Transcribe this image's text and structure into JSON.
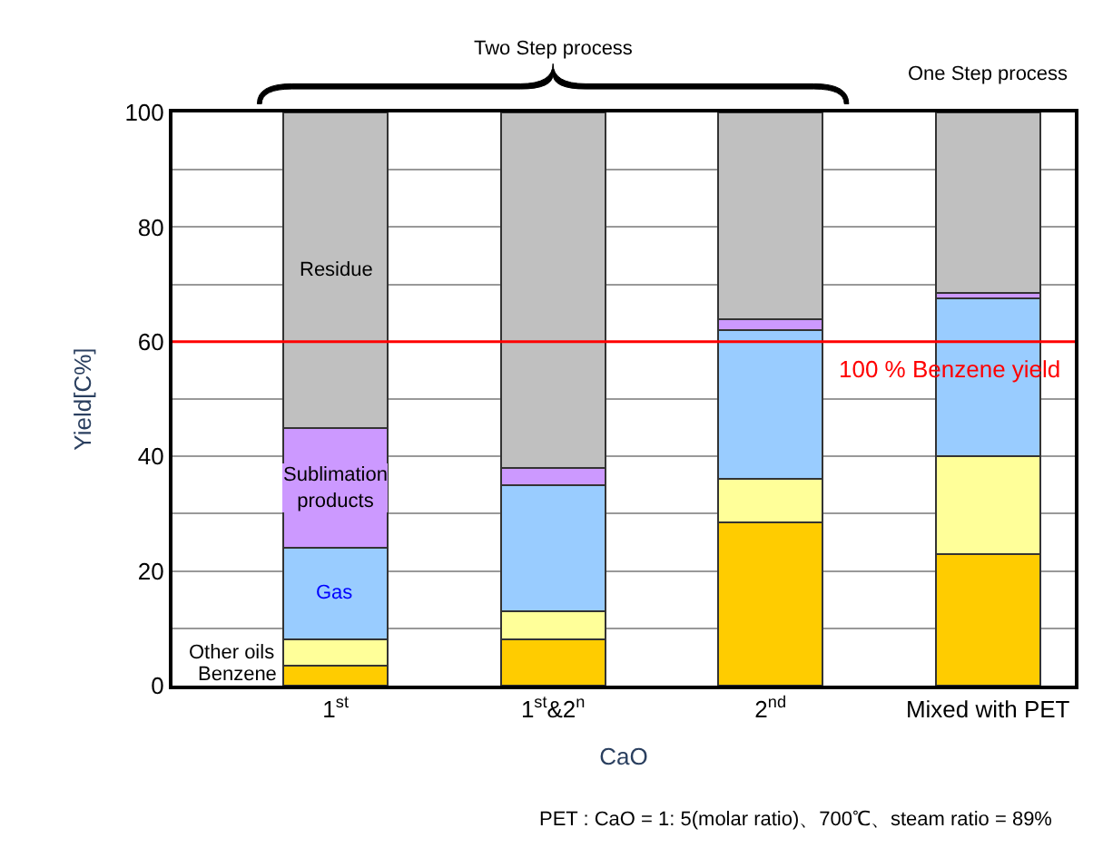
{
  "chart_data": {
    "type": "bar",
    "stacked": true,
    "categories": [
      "1$^{st}$",
      "1$^{st}$&2$^{n}$",
      "2$^{nd}$",
      "Mixed with PET"
    ],
    "series": [
      {
        "name": "Benzene",
        "color": "#ffcc00",
        "values": [
          3.5,
          8,
          28.5,
          23
        ]
      },
      {
        "name": "Other oils",
        "color": "#ffff99",
        "values": [
          4.5,
          5,
          7.5,
          17
        ]
      },
      {
        "name": "Gas",
        "color": "#99ccff",
        "values": [
          16,
          22,
          26,
          27.5
        ]
      },
      {
        "name": "Sublimation products",
        "color": "#cc99ff",
        "values": [
          21,
          3,
          2,
          1
        ]
      },
      {
        "name": "Residue",
        "color": "#c0c0c0",
        "values": [
          55,
          62,
          36,
          31.5
        ]
      }
    ],
    "xlabel": "CaO",
    "ylabel": "Yield[C%]",
    "ylim": [
      0,
      100
    ],
    "yticks": [
      0,
      {
        "value": 10,
        "label": null
      },
      20,
      {
        "value": 30,
        "label": null
      },
      40,
      {
        "value": 50,
        "label": null
      },
      60,
      {
        "value": 70,
        "label": null
      },
      80,
      {
        "value": 90,
        "label": null
      },
      100
    ],
    "grid": "y",
    "legend": false,
    "ref_lines": [
      {
        "axis": "y",
        "value": 60,
        "label": "100 % Benzene yield",
        "color": "#ff0000"
      }
    ],
    "annotations": [
      "Two Step process",
      "One Step process",
      "PET : CaO = 1: 5(molar ratio)、700℃、steam ratio = 89%"
    ]
  }
}
